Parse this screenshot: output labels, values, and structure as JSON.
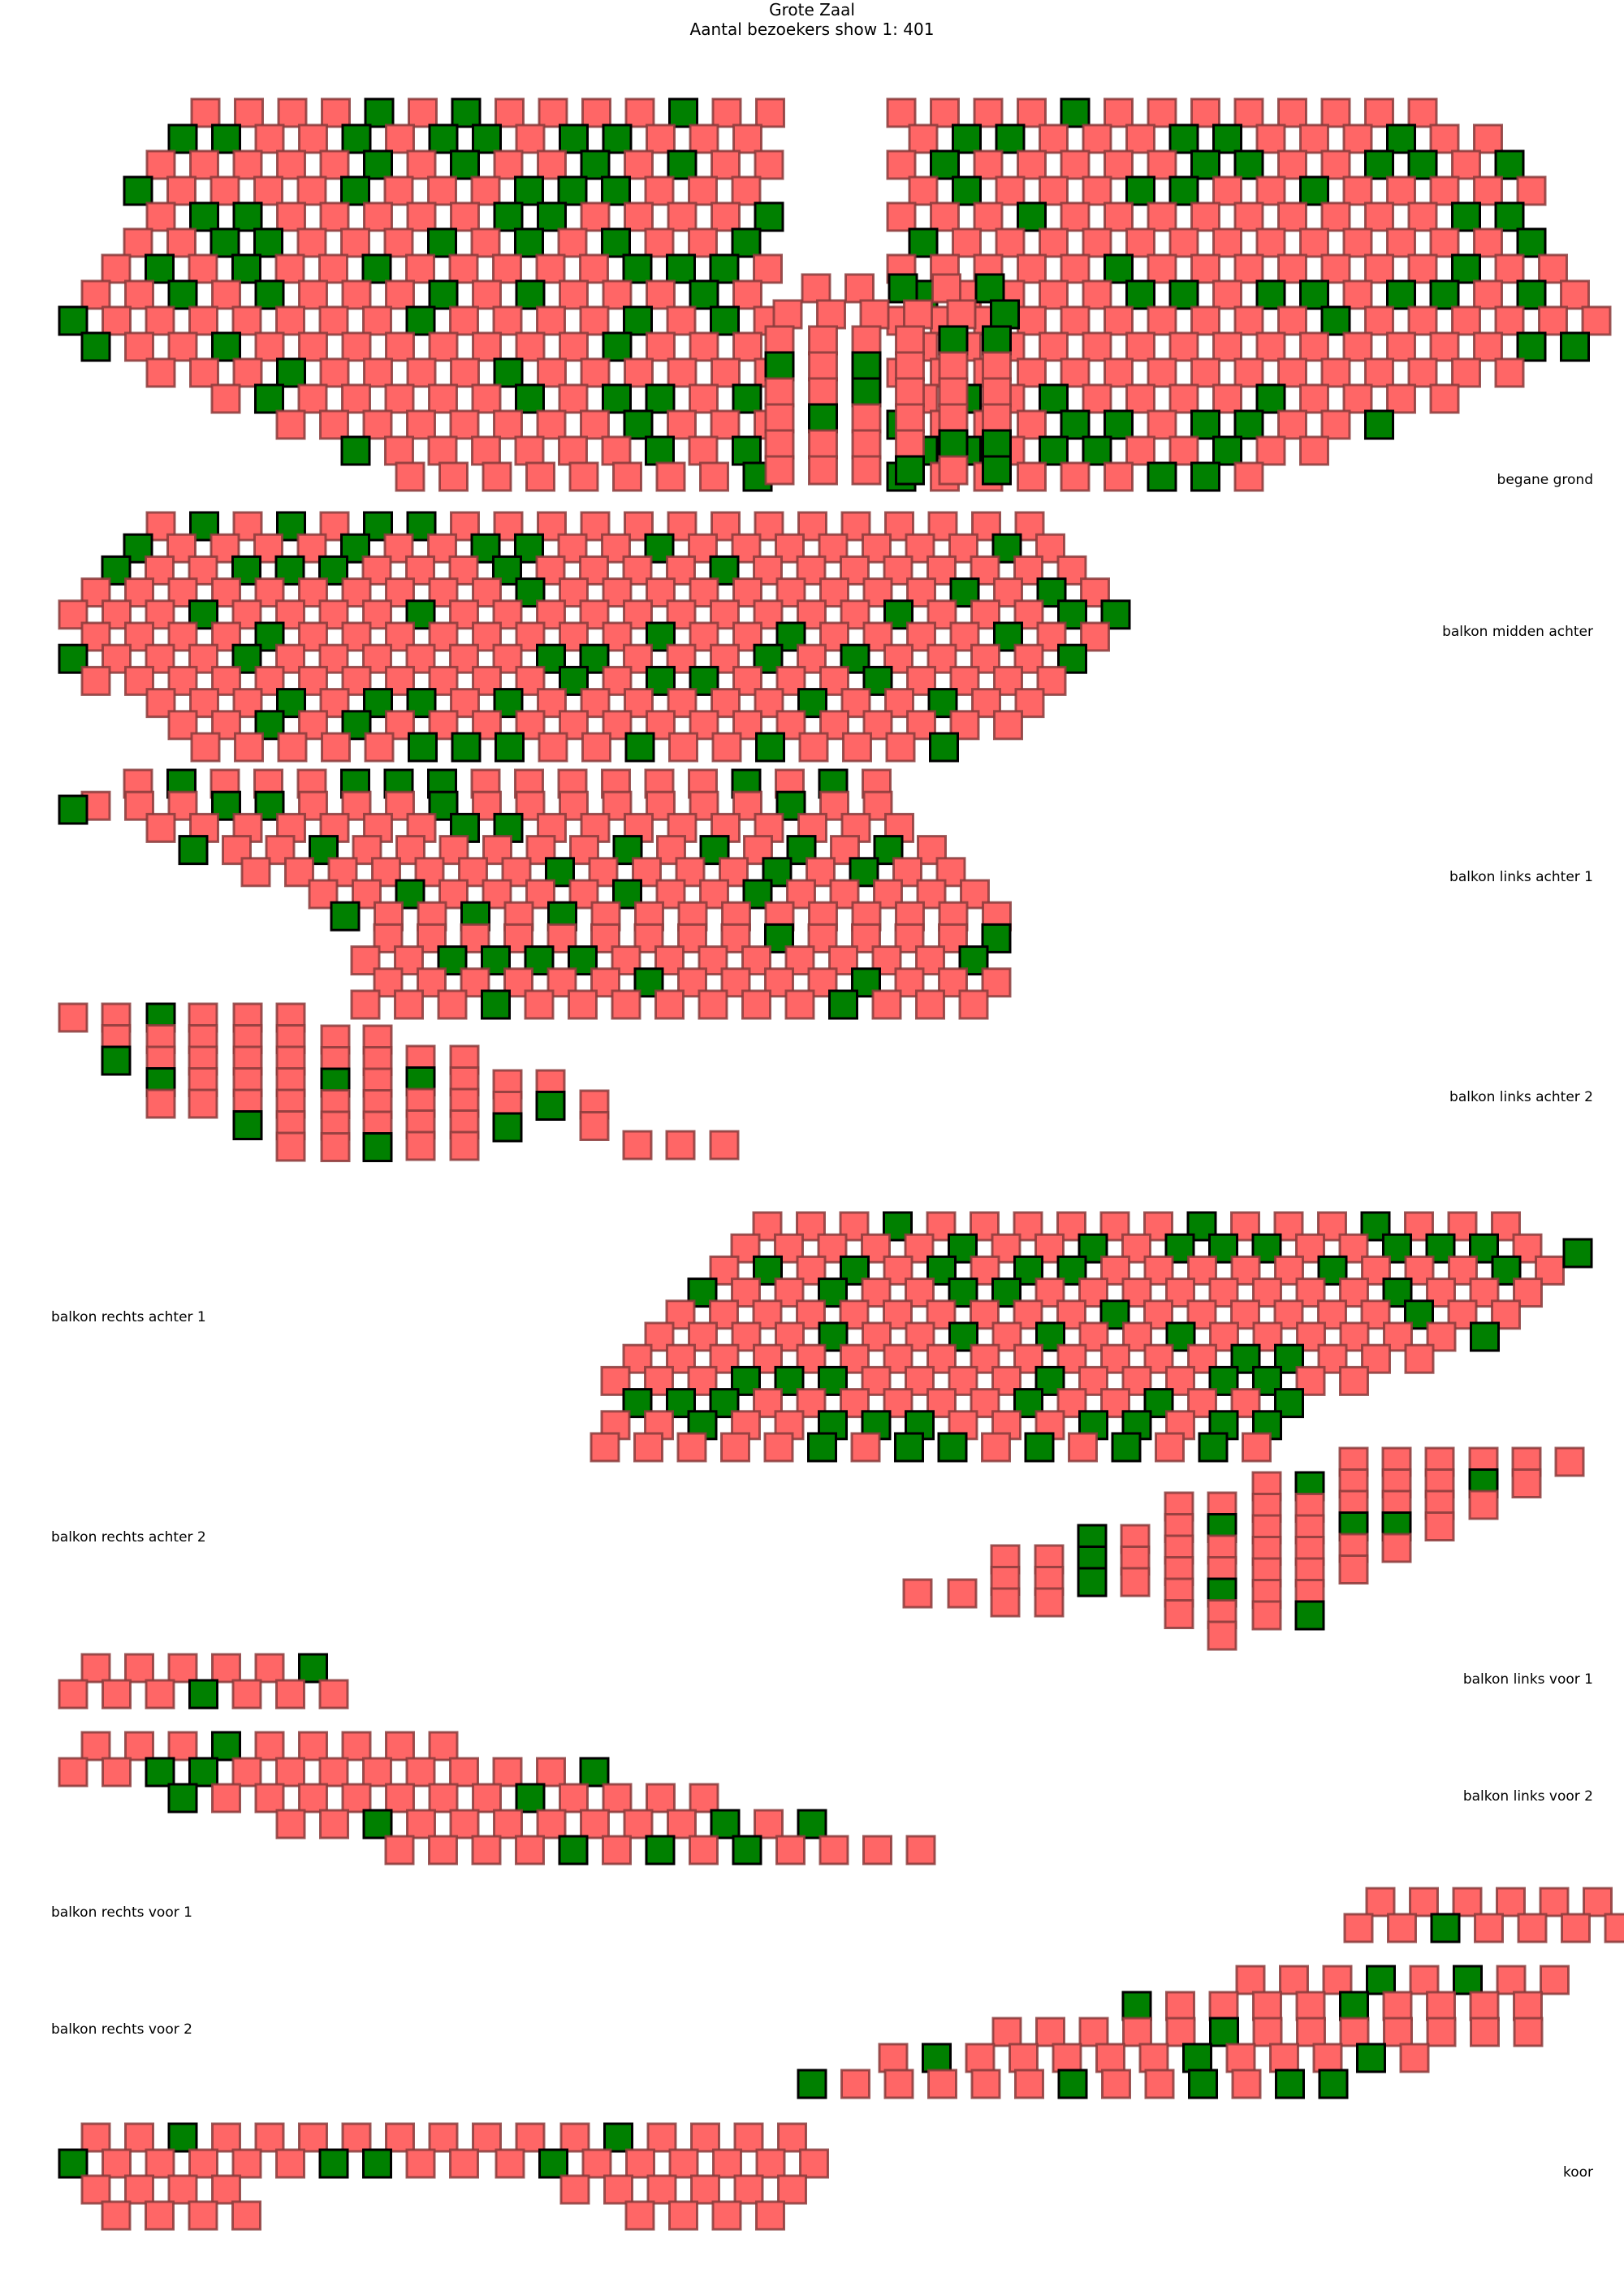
{
  "title": "Grote Zaal",
  "subtitle": "Aantal bezoekers show 1: 401",
  "legend_colors": {
    "free_seat": "#ff6666",
    "occupied_seat": "#008000"
  },
  "sections": [
    {
      "label": "begane grond",
      "rows": [
        "-xx......xx......xxxxx.....xxxxx....ss..ssxxx.........xx",
        "-xxx.....xxx.....xxxxx.....xxxxx....sss..sxxxx........xx"
      ]
    },
    {
      "label": "balkon midden achter"
    },
    {
      "label": "balkon links achter 1"
    },
    {
      "label": "balkon links achter 2"
    },
    {
      "label": "balkon rechts achter 1"
    },
    {
      "label": "balkon rechts achter 2"
    },
    {
      "label": "balkon links voor 1"
    },
    {
      "label": "balkon links voor 2"
    },
    {
      "label": "balkon rechts voor 1"
    },
    {
      "label": "balkon rechts voor 2"
    },
    {
      "label": "koor"
    }
  ]
}
